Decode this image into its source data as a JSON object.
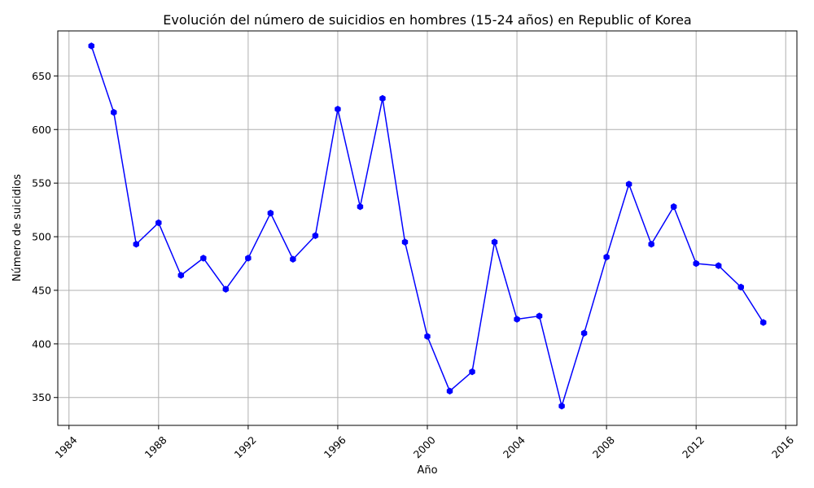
{
  "chart_data": {
    "type": "line",
    "title": "Evolución del número de suicidios en hombres (15-24 años) en Republic of Korea",
    "xlabel": "Año",
    "ylabel": "Número de suicidios",
    "xlim": [
      1983.5,
      2016.5
    ],
    "ylim": [
      324,
      692
    ],
    "x_ticks": [
      1984,
      1988,
      1992,
      1996,
      2000,
      2004,
      2008,
      2012,
      2016
    ],
    "x_tick_labels": [
      "1984",
      "1988",
      "1992",
      "1996",
      "2000",
      "2004",
      "2008",
      "2012",
      "2016"
    ],
    "y_ticks": [
      350,
      400,
      450,
      500,
      550,
      600,
      650
    ],
    "y_tick_labels": [
      "350",
      "400",
      "450",
      "500",
      "550",
      "600",
      "650"
    ],
    "grid": true,
    "series": [
      {
        "color": "#0000ff",
        "marker": "hexagon",
        "x": [
          1985,
          1986,
          1987,
          1988,
          1989,
          1990,
          1991,
          1992,
          1993,
          1994,
          1995,
          1996,
          1997,
          1998,
          1999,
          2000,
          2001,
          2002,
          2003,
          2004,
          2005,
          2006,
          2007,
          2008,
          2009,
          2010,
          2011,
          2012,
          2013,
          2014,
          2015
        ],
        "values": [
          678,
          616,
          493,
          513,
          464,
          480,
          451,
          480,
          522,
          479,
          501,
          619,
          528,
          629,
          495,
          407,
          356,
          374,
          495,
          423,
          426,
          342,
          410,
          481,
          549,
          493,
          528,
          475,
          473,
          453,
          420
        ]
      }
    ]
  }
}
